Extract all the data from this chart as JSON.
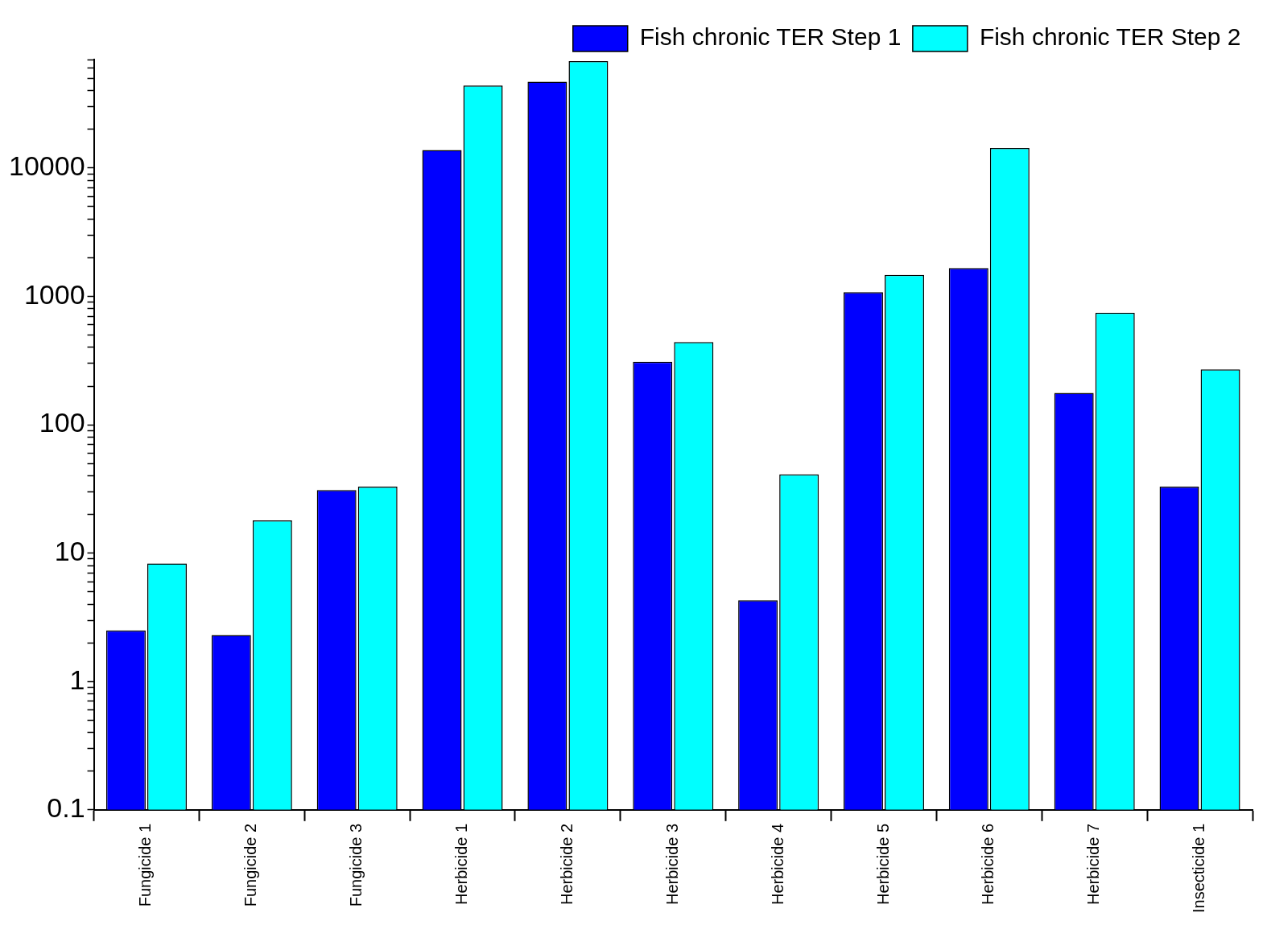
{
  "chart_data": {
    "type": "bar",
    "categories": [
      "Fungicide 1",
      "Fungicide 2",
      "Fungicide 3",
      "Herbicide 1",
      "Herbicide 2",
      "Herbicide 3",
      "Herbicide 4",
      "Herbicide 5",
      "Herbicide 6",
      "Herbicide 7",
      "Insecticide 1"
    ],
    "series": [
      {
        "name": "Fish chronic TER Step 1",
        "color": "#0000ff",
        "values": [
          2.5,
          2.3,
          31,
          13800,
          47000,
          310,
          4.3,
          1080,
          1660,
          177,
          33
        ]
      },
      {
        "name": "Fish chronic TER Step 2",
        "color": "#00ffff",
        "values": [
          8.3,
          18,
          33,
          44000,
          68000,
          440,
          41,
          1470,
          14300,
          745,
          270
        ]
      }
    ],
    "log": "y",
    "ylim": [
      0.1,
      70000
    ],
    "yticks": [
      0.1,
      {
        "value": 0.2,
        "label": null
      },
      {
        "value": 0.3,
        "label": null
      },
      {
        "value": 0.4,
        "label": null
      },
      {
        "value": 0.5,
        "label": null
      },
      {
        "value": 0.6,
        "label": null
      },
      {
        "value": 0.7,
        "label": null
      },
      {
        "value": 0.8,
        "label": null
      },
      {
        "value": 0.9,
        "label": null
      },
      1,
      {
        "value": 2,
        "label": null
      },
      {
        "value": 3,
        "label": null
      },
      {
        "value": 4,
        "label": null
      },
      {
        "value": 5,
        "label": null
      },
      {
        "value": 6,
        "label": null
      },
      {
        "value": 7,
        "label": null
      },
      {
        "value": 8,
        "label": null
      },
      {
        "value": 9,
        "label": null
      },
      10,
      {
        "value": 20,
        "label": null
      },
      {
        "value": 30,
        "label": null
      },
      {
        "value": 40,
        "label": null
      },
      {
        "value": 50,
        "label": null
      },
      {
        "value": 60,
        "label": null
      },
      {
        "value": 70,
        "label": null
      },
      {
        "value": 80,
        "label": null
      },
      {
        "value": 90,
        "label": null
      },
      100,
      {
        "value": 200,
        "label": null
      },
      {
        "value": 300,
        "label": null
      },
      {
        "value": 400,
        "label": null
      },
      {
        "value": 500,
        "label": null
      },
      {
        "value": 600,
        "label": null
      },
      {
        "value": 700,
        "label": null
      },
      {
        "value": 800,
        "label": null
      },
      {
        "value": 900,
        "label": null
      },
      1000,
      {
        "value": 2000,
        "label": null
      },
      {
        "value": 3000,
        "label": null
      },
      {
        "value": 4000,
        "label": null
      },
      {
        "value": 5000,
        "label": null
      },
      {
        "value": 6000,
        "label": null
      },
      {
        "value": 7000,
        "label": null
      },
      {
        "value": 8000,
        "label": null
      },
      {
        "value": 9000,
        "label": null
      },
      10000,
      {
        "value": 20000,
        "label": null
      },
      {
        "value": 30000,
        "label": null
      },
      {
        "value": 40000,
        "label": null
      },
      {
        "value": 50000,
        "label": null
      },
      {
        "value": 60000,
        "label": null
      },
      {
        "value": 70000,
        "label": null
      }
    ],
    "grid": false,
    "legend": "top right"
  }
}
